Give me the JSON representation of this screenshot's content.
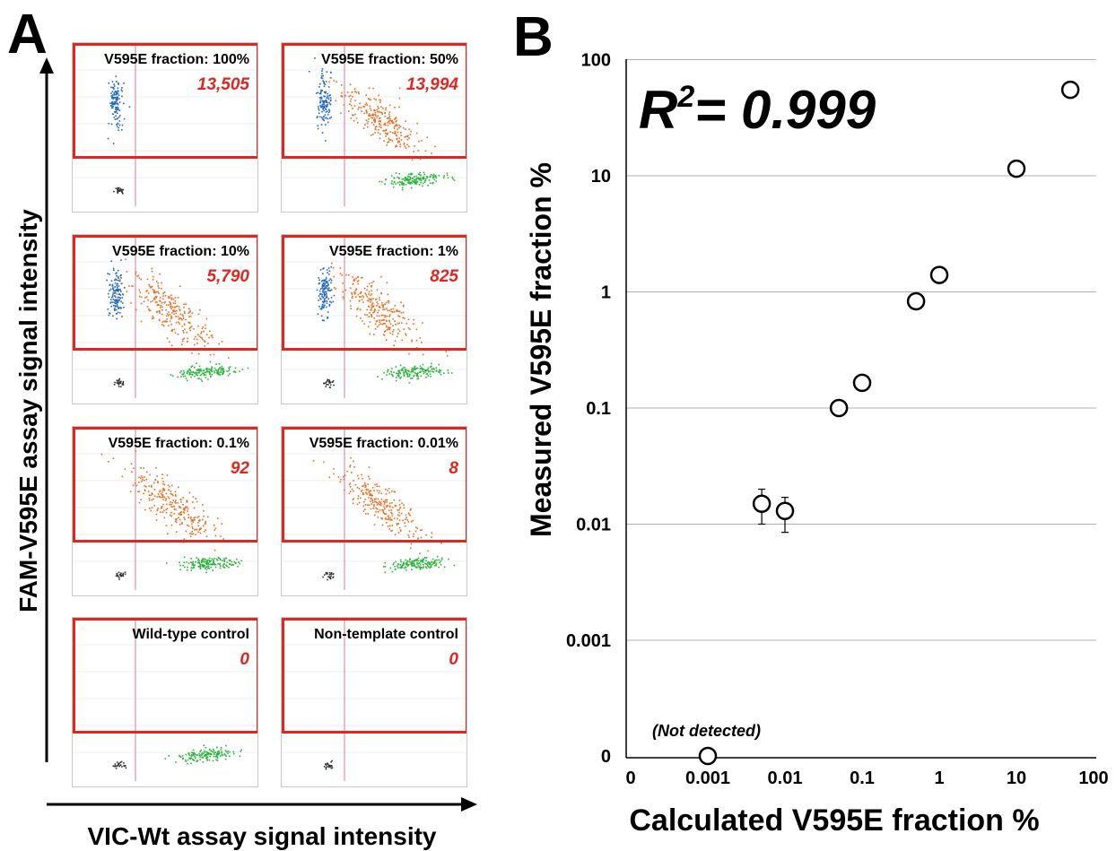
{
  "panel_a": {
    "letter": "A",
    "y_axis_label": "FAM-V595E assay signal intensity",
    "x_axis_label": "VIC-Wt assay signal intensity",
    "plots": [
      {
        "label": "V595E fraction: 100%",
        "count": "13,505",
        "clusters": [
          "blue",
          "black"
        ]
      },
      {
        "label": "V595E fraction: 50%",
        "count": "13,994",
        "clusters": [
          "blue",
          "orange",
          "green"
        ]
      },
      {
        "label": "V595E fraction: 10%",
        "count": "5,790",
        "clusters": [
          "blue",
          "orange",
          "green",
          "black"
        ]
      },
      {
        "label": "V595E fraction: 1%",
        "count": "825",
        "clusters": [
          "blue",
          "orange",
          "green",
          "black"
        ]
      },
      {
        "label": "V595E fraction: 0.1%",
        "count": "92",
        "clusters": [
          "orange",
          "green",
          "black"
        ]
      },
      {
        "label": "V595E fraction: 0.01%",
        "count": "8",
        "clusters": [
          "orange",
          "green",
          "black"
        ]
      },
      {
        "label": "Wild-type control",
        "count": "0",
        "clusters": [
          "green",
          "black"
        ]
      },
      {
        "label": "Non-template control",
        "count": "0",
        "clusters": [
          "black"
        ]
      }
    ]
  },
  "panel_b": {
    "letter": "B",
    "annotation": "R²= 0.999",
    "not_detected_label": "(Not detected)"
  },
  "colors": {
    "gate": "#e0261f",
    "count_text": "#e0261f",
    "blue": "#2166c4",
    "orange": "#ea6c1b",
    "green": "#28b23a",
    "black": "#333333"
  },
  "chart_data": {
    "type": "scatter",
    "xlabel": "Calculated V595E fraction %",
    "ylabel": "Measured V595E fraction %",
    "x_scale": "log",
    "y_scale": "log",
    "x_ticks": [
      "0",
      "0.001",
      "0.01",
      "0.1",
      "1",
      "10",
      "100"
    ],
    "y_ticks": [
      "0",
      "0.001",
      "0.01",
      "0.1",
      "1",
      "10",
      "100"
    ],
    "grid": "horizontal",
    "points": [
      {
        "x": 0.001,
        "y": 0,
        "note": "(Not detected)"
      },
      {
        "x": 0.005,
        "y": 0.015,
        "y_err": [
          0.01,
          0.02
        ]
      },
      {
        "x": 0.01,
        "y": 0.013,
        "y_err": [
          0.0085,
          0.017
        ]
      },
      {
        "x": 0.05,
        "y": 0.1
      },
      {
        "x": 0.1,
        "y": 0.165
      },
      {
        "x": 0.5,
        "y": 0.83
      },
      {
        "x": 1,
        "y": 1.4
      },
      {
        "x": 10,
        "y": 11.5
      },
      {
        "x": 50,
        "y": 55
      }
    ]
  }
}
